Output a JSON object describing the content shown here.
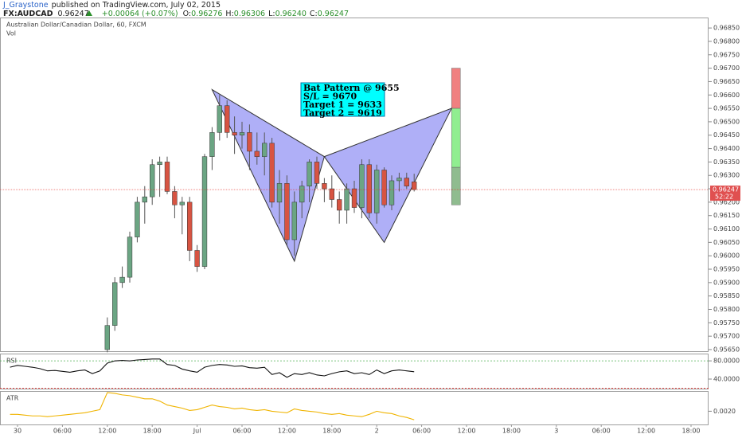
{
  "header": {
    "author": "J_Graystone",
    "published": "published on TradingView.com, July 02, 2015",
    "symbol": "FX:AUDCAD",
    "last": "0.96247",
    "change": "+0.00064 (+0.07%)",
    "ohlc": [
      {
        "label": "O:",
        "value": "0.96276"
      },
      {
        "label": "H:",
        "value": "0.96306"
      },
      {
        "label": "L:",
        "value": "0.96240"
      },
      {
        "label": "C:",
        "value": "0.96247"
      }
    ]
  },
  "chart_data": [
    {
      "type": "candlestick",
      "title": "Australian Dollar/Canadian Dollar, 60, FXCM",
      "subtitle": "Vol",
      "up_color": "#6ba583",
      "down_color": "#d75442",
      "x": [
        12,
        13,
        14,
        15,
        16,
        17,
        18,
        19,
        20,
        21,
        22,
        23,
        24,
        25,
        26,
        27,
        28,
        29,
        30,
        31,
        32,
        33,
        34,
        35,
        36,
        37,
        38,
        39,
        40,
        41,
        42,
        43,
        44,
        45,
        46,
        47,
        48,
        49,
        50,
        51,
        52,
        53
      ],
      "open": [
        0.9565,
        0.9574,
        0.959,
        0.9592,
        0.9607,
        0.962,
        0.9622,
        0.9634,
        0.9635,
        0.9624,
        0.9619,
        0.962,
        0.9602,
        0.9596,
        0.9637,
        0.9646,
        0.9656,
        0.9646,
        0.9645,
        0.9646,
        0.9639,
        0.9637,
        0.9642,
        0.962,
        0.9627,
        0.9606,
        0.962,
        0.9626,
        0.9635,
        0.9627,
        0.9625,
        0.9621,
        0.9617,
        0.9625,
        0.9618,
        0.9634,
        0.9616,
        0.9632,
        0.9619,
        0.9628,
        0.9629,
        0.96276
      ],
      "high": [
        0.9577,
        0.9592,
        0.9596,
        0.9609,
        0.9622,
        0.9626,
        0.9636,
        0.9637,
        0.9637,
        0.9626,
        0.9622,
        0.9622,
        0.9604,
        0.9638,
        0.9648,
        0.966,
        0.9658,
        0.9652,
        0.965,
        0.9649,
        0.9646,
        0.9646,
        0.9644,
        0.9632,
        0.963,
        0.9624,
        0.9628,
        0.9636,
        0.9637,
        0.9629,
        0.963,
        0.9624,
        0.9627,
        0.9628,
        0.9636,
        0.9636,
        0.9634,
        0.9633,
        0.963,
        0.9631,
        0.9631,
        0.96306
      ],
      "low": [
        0.9564,
        0.9572,
        0.9588,
        0.959,
        0.9605,
        0.9612,
        0.9619,
        0.9622,
        0.9623,
        0.9614,
        0.9608,
        0.9598,
        0.9594,
        0.9595,
        0.9632,
        0.9643,
        0.9644,
        0.9638,
        0.964,
        0.9632,
        0.9634,
        0.963,
        0.9618,
        0.9612,
        0.9604,
        0.96,
        0.9614,
        0.962,
        0.9625,
        0.962,
        0.9618,
        0.9612,
        0.9612,
        0.9616,
        0.9614,
        0.9614,
        0.9612,
        0.9618,
        0.9617,
        0.9624,
        0.9625,
        0.9624
      ],
      "close": [
        0.9574,
        0.959,
        0.9592,
        0.9607,
        0.962,
        0.9622,
        0.9634,
        0.9635,
        0.9624,
        0.9619,
        0.962,
        0.9602,
        0.9596,
        0.9637,
        0.9646,
        0.9656,
        0.9646,
        0.9645,
        0.9646,
        0.9639,
        0.9637,
        0.9642,
        0.962,
        0.9627,
        0.9606,
        0.962,
        0.9626,
        0.9635,
        0.9627,
        0.9625,
        0.9621,
        0.9617,
        0.9625,
        0.9618,
        0.9634,
        0.9616,
        0.9632,
        0.9619,
        0.9628,
        0.9629,
        0.9626,
        0.96247
      ],
      "price_label": "0.96247",
      "countdown": "52:22",
      "pattern": {
        "color": "rgba(95,95,240,0.5)",
        "x": [
          26,
          37,
          41,
          49,
          58
        ],
        "y": [
          0.9662,
          0.9598,
          0.9637,
          0.9605,
          0.9655
        ]
      },
      "levels": [
        0.967,
        0.9655,
        0.9633,
        0.9619
      ],
      "level_colors": [
        "#f08080",
        "#90ee90",
        "#8fbc8f"
      ],
      "annotations": [
        "Bat Pattern @ 9655",
        "S/L = 9670",
        "Target 1 = 9633",
        "Target 2 = 9619"
      ],
      "xlim": [
        -2.34,
        92.34
      ],
      "ylim": [
        0.95644,
        0.96889
      ],
      "xticks": [
        {
          "value": 0,
          "label": "30"
        },
        {
          "value": 6,
          "label": "06:00"
        },
        {
          "value": 12,
          "label": "12:00"
        },
        {
          "value": 18,
          "label": "18:00"
        },
        {
          "value": 24,
          "label": "Jul"
        },
        {
          "value": 30,
          "label": "06:00"
        },
        {
          "value": 36,
          "label": "12:00"
        },
        {
          "value": 42,
          "label": "18:00"
        },
        {
          "value": 48,
          "label": "2"
        },
        {
          "value": 54,
          "label": "06:00"
        },
        {
          "value": 60,
          "label": "12:00"
        },
        {
          "value": 66,
          "label": "18:00"
        },
        {
          "value": 72,
          "label": "3"
        },
        {
          "value": 78,
          "label": "06:00"
        },
        {
          "value": 84,
          "label": "12:00"
        },
        {
          "value": 90,
          "label": "18:00"
        }
      ],
      "yticks": [
        {
          "value": 0.9565,
          "label": "0.95650"
        },
        {
          "value": 0.957,
          "label": "0.95700"
        },
        {
          "value": 0.9575,
          "label": "0.95750"
        },
        {
          "value": 0.958,
          "label": "0.95800"
        },
        {
          "value": 0.9585,
          "label": "0.95850"
        },
        {
          "value": 0.959,
          "label": "0.95900"
        },
        {
          "value": 0.9595,
          "label": "0.95950"
        },
        {
          "value": 0.96,
          "label": "0.96000"
        },
        {
          "value": 0.9605,
          "label": "0.96050"
        },
        {
          "value": 0.961,
          "label": "0.96100"
        },
        {
          "value": 0.9615,
          "label": "0.96150"
        },
        {
          "value": 0.962,
          "label": "0.96200"
        },
        {
          "value": 0.9625,
          "label": "0.96250"
        },
        {
          "value": 0.963,
          "label": "0.96300"
        },
        {
          "value": 0.9635,
          "label": "0.96350"
        },
        {
          "value": 0.964,
          "label": "0.96400"
        },
        {
          "value": 0.9645,
          "label": "0.96450"
        },
        {
          "value": 0.965,
          "label": "0.96500"
        },
        {
          "value": 0.9655,
          "label": "0.96550"
        },
        {
          "value": 0.966,
          "label": "0.96600"
        },
        {
          "value": 0.9665,
          "label": "0.96650"
        },
        {
          "value": 0.967,
          "label": "0.96700"
        },
        {
          "value": 0.9675,
          "label": "0.96750"
        },
        {
          "value": 0.968,
          "label": "0.96800"
        },
        {
          "value": 0.9685,
          "label": "0.96850"
        }
      ]
    },
    {
      "type": "line",
      "title": "RSI",
      "color": "#111111",
      "x": [
        -1,
        0,
        1,
        2,
        3,
        4,
        5,
        6,
        7,
        8,
        9,
        10,
        11,
        12,
        13,
        14,
        15,
        16,
        17,
        18,
        19,
        20,
        21,
        22,
        23,
        24,
        25,
        26,
        27,
        28,
        29,
        30,
        31,
        32,
        33,
        34,
        35,
        36,
        37,
        38,
        39,
        40,
        41,
        42,
        43,
        44,
        45,
        46,
        47,
        48,
        49,
        50,
        51,
        52,
        53
      ],
      "values": [
        66,
        70,
        68,
        66,
        63,
        58,
        59,
        57,
        55,
        58,
        60,
        52,
        58,
        75,
        80,
        81,
        80,
        82,
        83,
        84,
        84,
        72,
        70,
        62,
        58,
        55,
        66,
        70,
        72,
        71,
        68,
        69,
        65,
        64,
        66,
        50,
        54,
        44,
        52,
        50,
        54,
        49,
        47,
        52,
        56,
        58,
        52,
        54,
        50,
        60,
        52,
        58,
        60,
        58,
        56
      ],
      "levels": [
        80,
        20
      ],
      "level_colors": [
        "#4caf50",
        "#e53935"
      ],
      "xlim": [
        -2.34,
        92.34
      ],
      "ylim": [
        19,
        96
      ],
      "yticks": [
        {
          "value": 80,
          "label": "80.0000"
        },
        {
          "value": 40,
          "label": "40.0000"
        }
      ]
    },
    {
      "type": "line",
      "title": "ATR",
      "color": "#f0b400",
      "x": [
        -1,
        0,
        1,
        2,
        3,
        4,
        5,
        6,
        7,
        8,
        9,
        10,
        11,
        12,
        13,
        14,
        15,
        16,
        17,
        18,
        19,
        20,
        21,
        22,
        23,
        24,
        25,
        26,
        27,
        28,
        29,
        30,
        31,
        32,
        33,
        34,
        35,
        36,
        37,
        38,
        39,
        40,
        41,
        42,
        43,
        44,
        45,
        46,
        47,
        48,
        49,
        50,
        51,
        52,
        53
      ],
      "values": [
        0.00192,
        0.00192,
        0.0019,
        0.00188,
        0.00188,
        0.00186,
        0.00188,
        0.0019,
        0.00192,
        0.00194,
        0.00196,
        0.002,
        0.00204,
        0.00248,
        0.00246,
        0.00242,
        0.0024,
        0.00236,
        0.00232,
        0.00232,
        0.00226,
        0.00216,
        0.00212,
        0.00208,
        0.00202,
        0.00204,
        0.0021,
        0.00216,
        0.00212,
        0.0021,
        0.00206,
        0.00208,
        0.00204,
        0.00202,
        0.00204,
        0.002,
        0.00198,
        0.00196,
        0.00206,
        0.00202,
        0.002,
        0.00198,
        0.00194,
        0.00192,
        0.00194,
        0.0019,
        0.00188,
        0.00186,
        0.00192,
        0.002,
        0.00196,
        0.00194,
        0.00188,
        0.00184,
        0.00178
      ],
      "xlim": [
        -2.34,
        92.34
      ],
      "ylim": [
        0.00166,
        0.00252
      ],
      "yticks": [
        {
          "value": 0.002,
          "label": "0.0020"
        }
      ]
    }
  ]
}
